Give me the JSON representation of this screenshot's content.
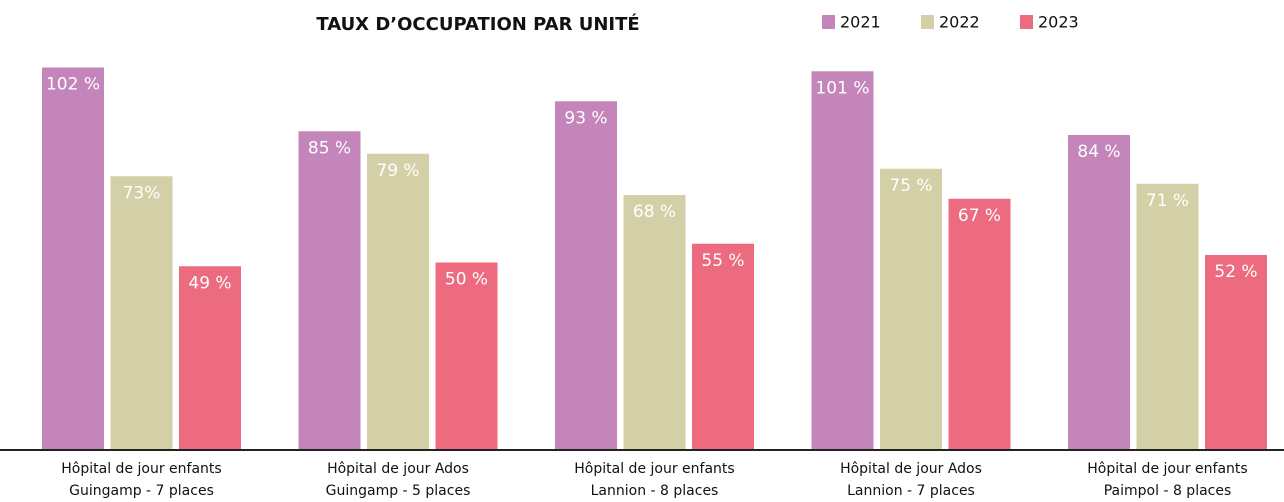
{
  "chart_data": {
    "type": "bar",
    "title": "TAUX D’OCCUPATION PAR UNITÉ",
    "categories": [
      [
        "Hôpital de jour enfants",
        "Guingamp - 7 places"
      ],
      [
        "Hôpital de jour Ados",
        "Guingamp  - 5 places"
      ],
      [
        "Hôpital de jour enfants",
        "Lannion - 8 places"
      ],
      [
        "Hôpital de jour Ados",
        "Lannion  - 7 places"
      ],
      [
        "Hôpital de jour enfants",
        "Paimpol - 8 places"
      ]
    ],
    "series": [
      {
        "name": "2021",
        "color": "#c485bb",
        "values": [
          102,
          85,
          93,
          101,
          84
        ],
        "value_labels": [
          "102 %",
          "85 %",
          "93 %",
          "101 %",
          "84 %"
        ]
      },
      {
        "name": "2022",
        "color": "#d3cfa6",
        "values": [
          73,
          79,
          68,
          75,
          71
        ],
        "value_labels": [
          "73%",
          "79 %",
          "68 %",
          "75 %",
          "71 %"
        ]
      },
      {
        "name": "2023",
        "color": "#ec6b7e",
        "values": [
          49,
          50,
          55,
          67,
          52
        ],
        "value_labels": [
          "49 %",
          "50 %",
          "55 %",
          "67 %",
          "52 %"
        ]
      }
    ],
    "ylim": [
      0,
      120
    ],
    "legend": "top-right"
  }
}
